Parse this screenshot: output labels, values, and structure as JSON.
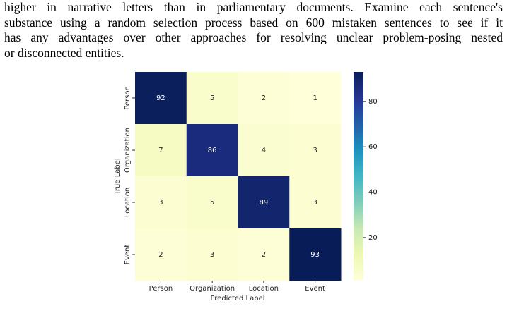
{
  "paragraph_lines": [
    "higher in narrative letters than in parliamentary documents. Examine each sentence's",
    "substance using a random selection process based on 600 mistaken sentences to see if it",
    "has any advantages over other approaches for resolving unclear problem-posing nested",
    "or disconnected entities."
  ],
  "chart_data": {
    "type": "heatmap",
    "x_label": "Predicted Label",
    "y_label": "True Label",
    "x_categories": [
      "Person",
      "Organization",
      "Location",
      "Event"
    ],
    "y_categories": [
      "Person",
      "Organization",
      "Location",
      "Event"
    ],
    "values": [
      [
        92,
        5,
        2,
        1
      ],
      [
        7,
        86,
        4,
        3
      ],
      [
        3,
        5,
        89,
        3
      ],
      [
        2,
        3,
        2,
        93
      ]
    ],
    "colormap": [
      "#ffffd9",
      "#edf8b1",
      "#c7e9b4",
      "#7fcdbb",
      "#41b6c4",
      "#1d91c0",
      "#225ea8",
      "#253494",
      "#081d58"
    ],
    "clim": [
      1,
      93
    ],
    "colorbar_ticks": [
      20,
      40,
      60,
      80
    ]
  }
}
